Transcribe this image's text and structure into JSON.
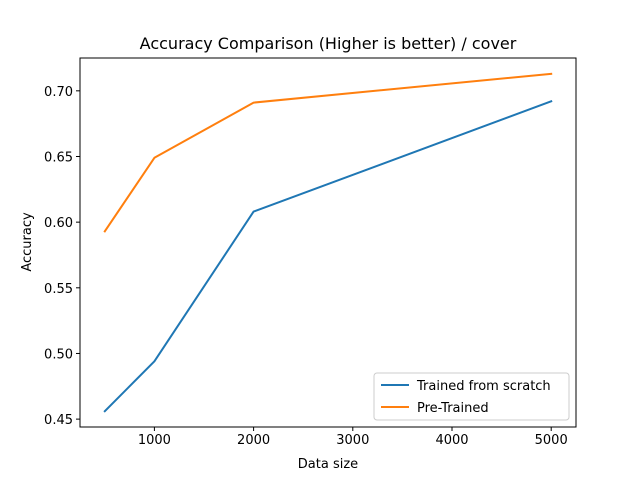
{
  "chart_data": {
    "type": "line",
    "title": "Accuracy Comparison (Higher is better) / cover",
    "xlabel": "Data size",
    "ylabel": "Accuracy",
    "xlim": [
      250,
      5250
    ],
    "ylim": [
      0.444,
      0.725
    ],
    "xticks": [
      1000,
      2000,
      3000,
      4000,
      5000
    ],
    "xtick_labels": [
      "1000",
      "2000",
      "3000",
      "4000",
      "5000"
    ],
    "yticks": [
      0.45,
      0.5,
      0.55,
      0.6,
      0.65,
      0.7
    ],
    "ytick_labels": [
      "0.45",
      "0.50",
      "0.55",
      "0.60",
      "0.65",
      "0.70"
    ],
    "grid": false,
    "legend_position": "lower-right",
    "series": [
      {
        "name": "Trained from scratch",
        "color": "#1f77b4",
        "x": [
          500,
          1000,
          2000,
          5000
        ],
        "y": [
          0.456,
          0.494,
          0.608,
          0.692
        ]
      },
      {
        "name": "Pre-Trained",
        "color": "#ff7f0e",
        "x": [
          500,
          1000,
          2000,
          5000
        ],
        "y": [
          0.593,
          0.649,
          0.691,
          0.713
        ]
      }
    ]
  }
}
